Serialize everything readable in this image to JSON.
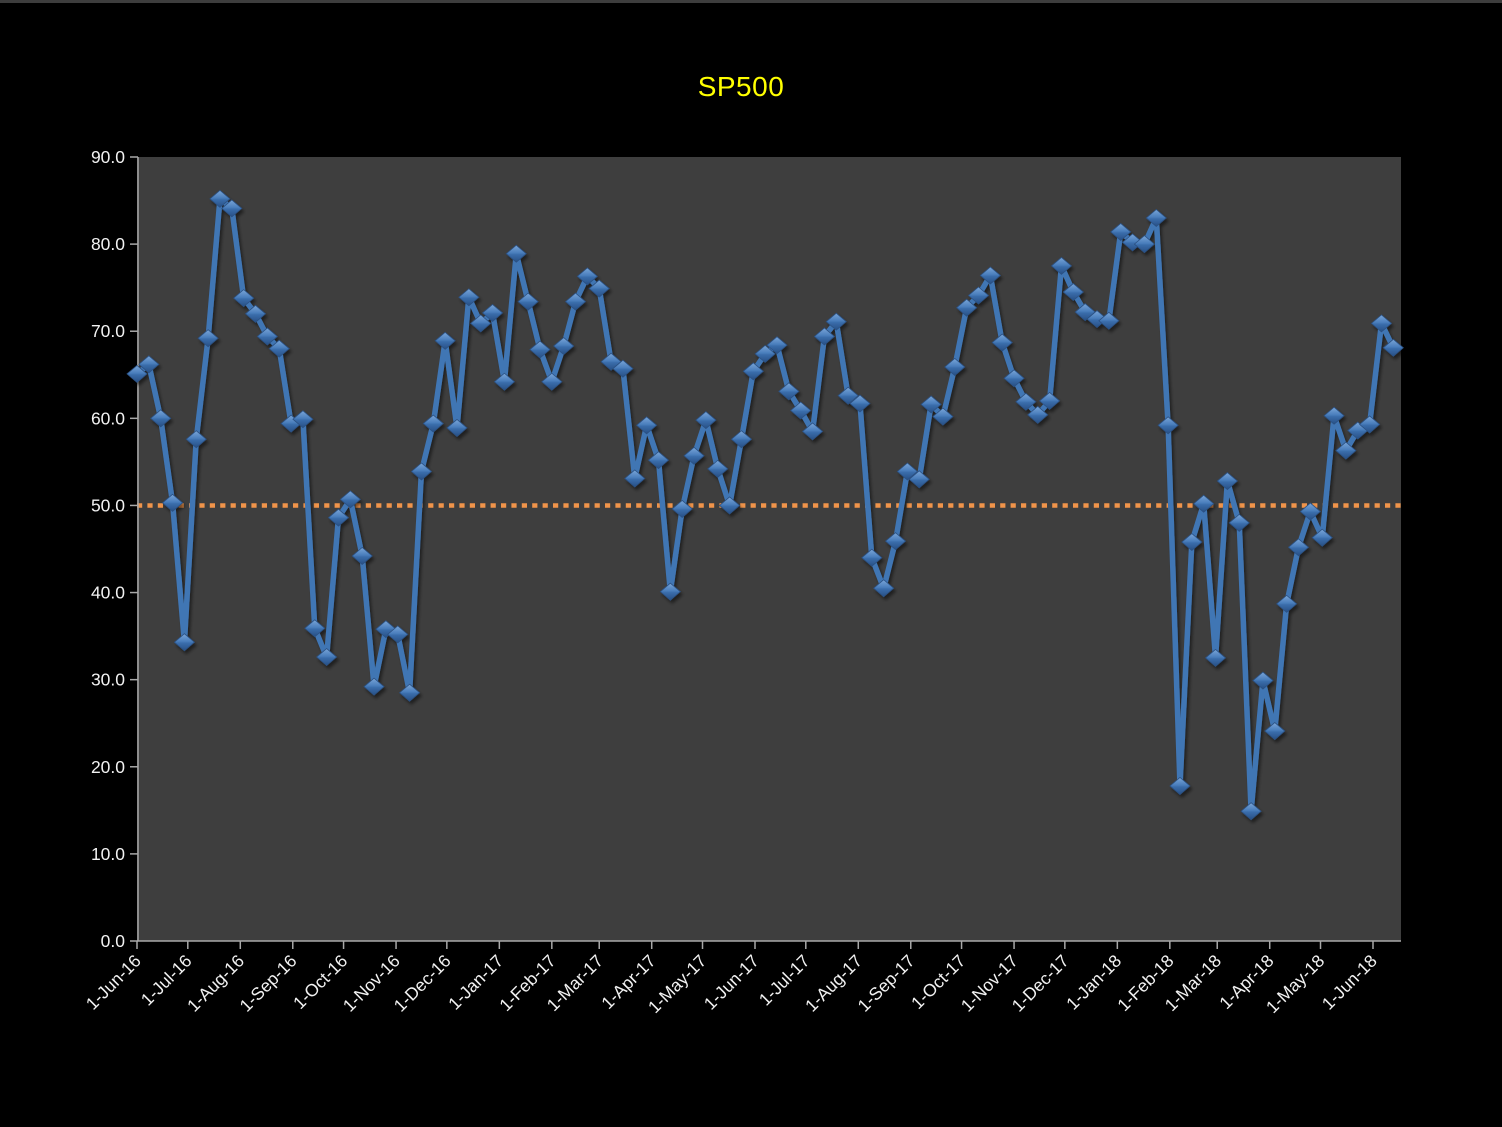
{
  "window": {
    "background": "#000000",
    "top_edge_color": "#3d3d3d"
  },
  "title": {
    "text": "SP500",
    "color": "#ffff00"
  },
  "chart_data": {
    "type": "line",
    "title": "SP500",
    "x_start": "1-Jun-16",
    "x_frequency": "weekly",
    "x_tick_labels": [
      "1-Jun-16",
      "1-Jul-16",
      "1-Aug-16",
      "1-Sep-16",
      "1-Oct-16",
      "1-Nov-16",
      "1-Dec-16",
      "1-Jan-17",
      "1-Feb-17",
      "1-Mar-17",
      "1-Apr-17",
      "1-May-17",
      "1-Jun-17",
      "1-Jul-17",
      "1-Aug-17",
      "1-Sep-17",
      "1-Oct-17",
      "1-Nov-17",
      "1-Dec-17",
      "1-Jan-18",
      "1-Feb-18",
      "1-Mar-18",
      "1-Apr-18",
      "1-May-18",
      "1-Jun-18"
    ],
    "y_tick_labels": [
      "0.0",
      "10.0",
      "20.0",
      "30.0",
      "40.0",
      "50.0",
      "60.0",
      "70.0",
      "80.0",
      "90.0"
    ],
    "ylim": [
      0,
      90
    ],
    "grid": "off",
    "legend": "none",
    "series": [
      {
        "name": "SP500",
        "color": "#4176b4",
        "marker": "diamond",
        "values": [
          65.1,
          66.2,
          60.0,
          50.3,
          34.3,
          57.6,
          69.2,
          85.2,
          84.1,
          73.8,
          72.0,
          69.4,
          68.0,
          59.4,
          59.9,
          35.9,
          32.6,
          48.6,
          50.7,
          44.2,
          29.2,
          35.8,
          35.2,
          28.5,
          53.9,
          59.4,
          68.9,
          58.9,
          73.9,
          70.9,
          72.1,
          64.2,
          78.9,
          73.4,
          67.9,
          64.2,
          68.3,
          73.4,
          76.3,
          74.9,
          66.5,
          65.7,
          53.1,
          59.2,
          55.2,
          40.1,
          49.6,
          55.7,
          59.8,
          54.2,
          50.0,
          57.6,
          65.4,
          67.4,
          68.4,
          63.1,
          60.9,
          58.5,
          69.4,
          71.1,
          62.6,
          61.7,
          44.0,
          40.5,
          45.9,
          53.9,
          53.0,
          61.6,
          60.2,
          65.9,
          72.7,
          74.1,
          76.4,
          68.7,
          64.6,
          61.9,
          60.4,
          62.0,
          77.5,
          74.5,
          72.2,
          71.4,
          71.2,
          81.4,
          80.2,
          80.0,
          83.0,
          59.2,
          17.8,
          45.8,
          50.2,
          32.5,
          52.8,
          48.0,
          14.9,
          29.9,
          24.1,
          38.7,
          45.2,
          49.3,
          46.3,
          60.3,
          56.3,
          58.6,
          59.3,
          70.9,
          68.1
        ]
      }
    ],
    "reference_line": {
      "value": 50.0,
      "color": "#f0944a",
      "style": "dotted"
    },
    "colors": {
      "plot_background": "#3e3e3e",
      "outer_background": "#000000",
      "axis": "#a8a8a8",
      "tick_labels": "#f2f2f2",
      "marker_light": "#7aa6d8",
      "marker_mid": "#4a7ebc",
      "marker_dark": "#274f85"
    }
  }
}
